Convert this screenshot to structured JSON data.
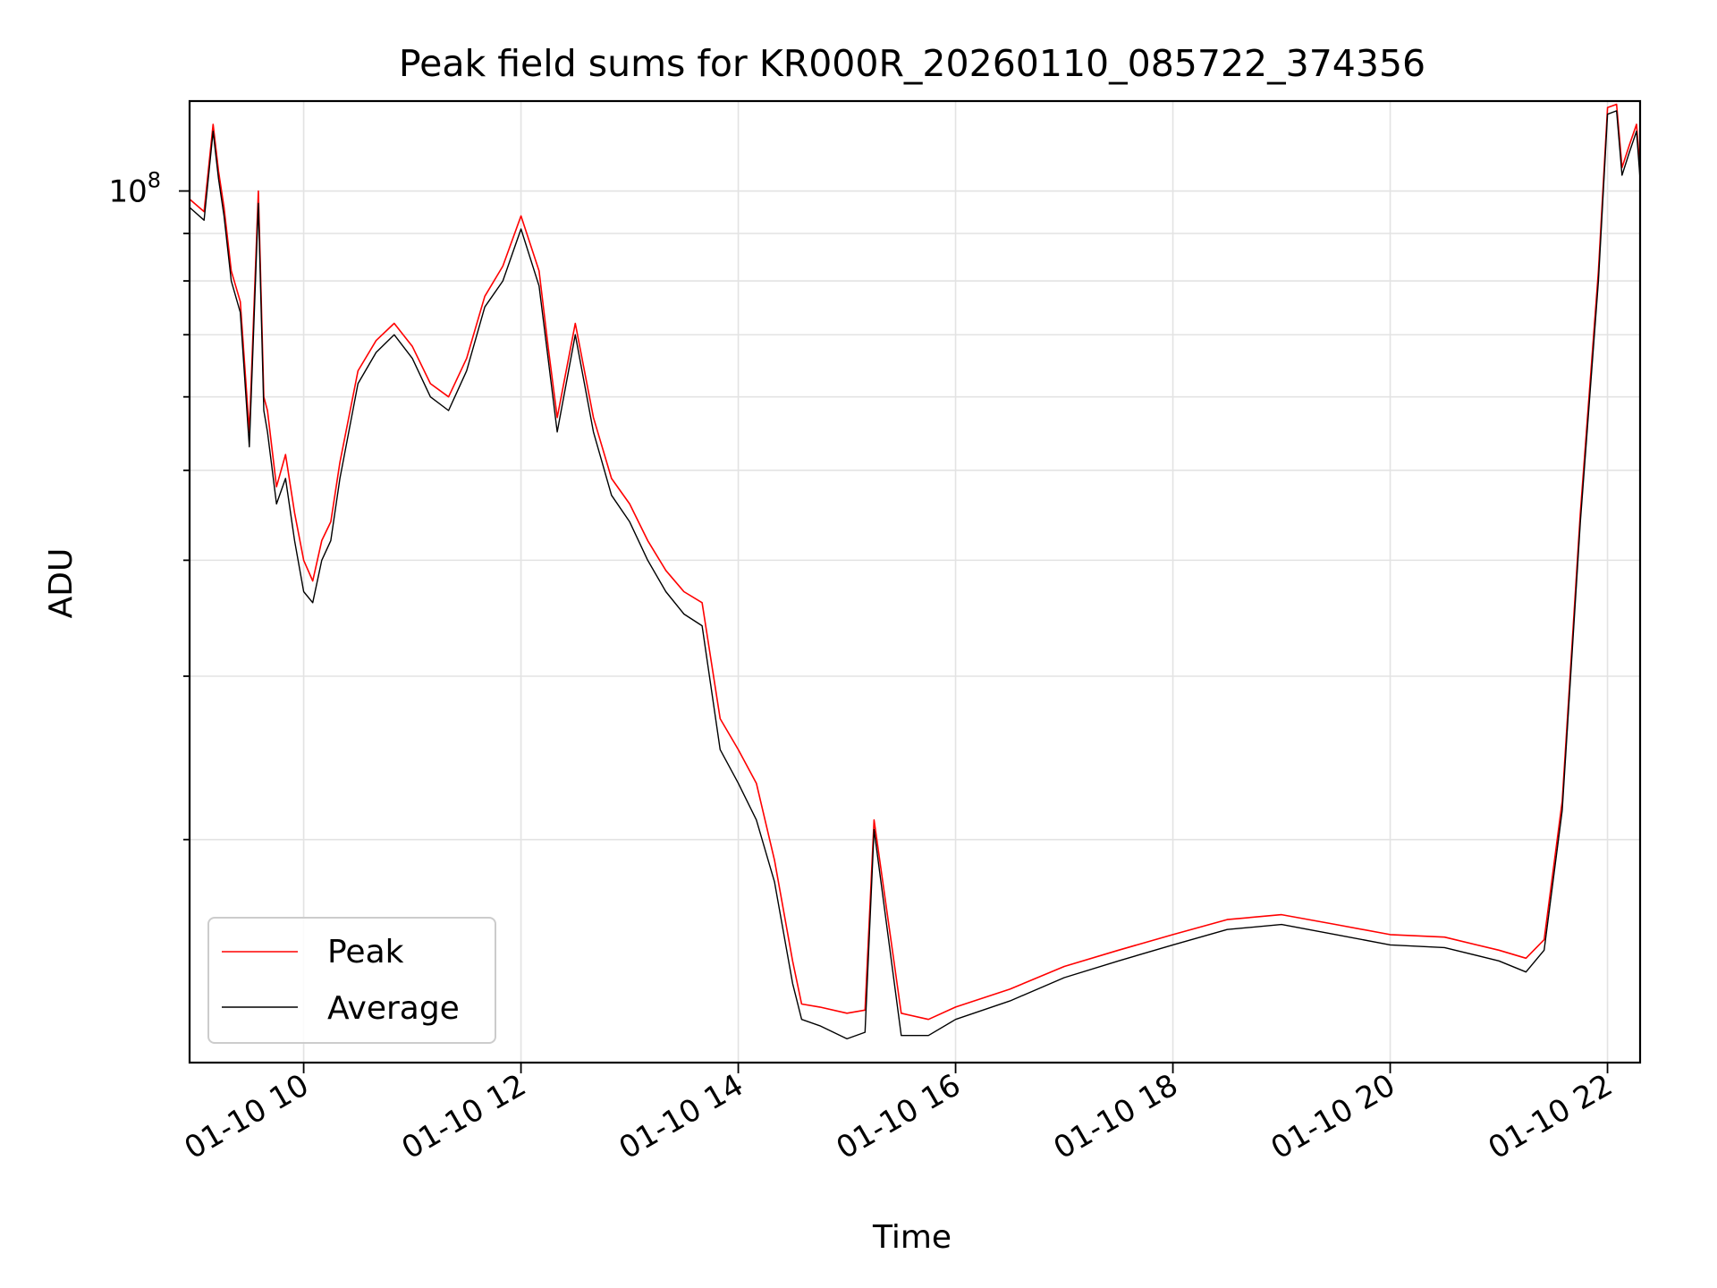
{
  "chart_data": {
    "type": "line",
    "title": "Peak field sums for KR000R_20260110_085722_374356",
    "xlabel": "Time",
    "ylabel": "ADU",
    "yscale": "log",
    "grid": "on",
    "legend_position": "lower-left",
    "xlim": [
      "2026-01-10 08:57",
      "2026-01-10 22:18"
    ],
    "ylim": [
      11500000,
      125000000
    ],
    "x_ticks": [
      {
        "value": "2026-01-10 10:00",
        "label": "01-10 10"
      },
      {
        "value": "2026-01-10 12:00",
        "label": "01-10 12"
      },
      {
        "value": "2026-01-10 14:00",
        "label": "01-10 14"
      },
      {
        "value": "2026-01-10 16:00",
        "label": "01-10 16"
      },
      {
        "value": "2026-01-10 18:00",
        "label": "01-10 18"
      },
      {
        "value": "2026-01-10 20:00",
        "label": "01-10 20"
      },
      {
        "value": "2026-01-10 22:00",
        "label": "01-10 22"
      }
    ],
    "y_major_tick": {
      "value": 100000000,
      "base": "10",
      "exponent": "8"
    },
    "y_minor_ticks": [
      20000000,
      30000000,
      40000000,
      50000000,
      60000000,
      70000000,
      80000000,
      90000000
    ],
    "x": [
      "2026-01-10 08:57",
      "2026-01-10 09:05",
      "2026-01-10 09:10",
      "2026-01-10 09:13",
      "2026-01-10 09:16",
      "2026-01-10 09:20",
      "2026-01-10 09:25",
      "2026-01-10 09:30",
      "2026-01-10 09:35",
      "2026-01-10 09:38",
      "2026-01-10 09:40",
      "2026-01-10 09:45",
      "2026-01-10 09:50",
      "2026-01-10 09:55",
      "2026-01-10 10:00",
      "2026-01-10 10:05",
      "2026-01-10 10:10",
      "2026-01-10 10:15",
      "2026-01-10 10:20",
      "2026-01-10 10:30",
      "2026-01-10 10:40",
      "2026-01-10 10:50",
      "2026-01-10 11:00",
      "2026-01-10 11:10",
      "2026-01-10 11:20",
      "2026-01-10 11:30",
      "2026-01-10 11:40",
      "2026-01-10 11:50",
      "2026-01-10 12:00",
      "2026-01-10 12:10",
      "2026-01-10 12:15",
      "2026-01-10 12:20",
      "2026-01-10 12:30",
      "2026-01-10 12:40",
      "2026-01-10 12:50",
      "2026-01-10 13:00",
      "2026-01-10 13:10",
      "2026-01-10 13:20",
      "2026-01-10 13:30",
      "2026-01-10 13:40",
      "2026-01-10 13:50",
      "2026-01-10 14:00",
      "2026-01-10 14:10",
      "2026-01-10 14:20",
      "2026-01-10 14:30",
      "2026-01-10 14:35",
      "2026-01-10 14:45",
      "2026-01-10 15:00",
      "2026-01-10 15:10",
      "2026-01-10 15:15",
      "2026-01-10 15:30",
      "2026-01-10 15:45",
      "2026-01-10 16:00",
      "2026-01-10 16:30",
      "2026-01-10 17:00",
      "2026-01-10 17:30",
      "2026-01-10 18:00",
      "2026-01-10 18:30",
      "2026-01-10 19:00",
      "2026-01-10 19:30",
      "2026-01-10 20:00",
      "2026-01-10 20:30",
      "2026-01-10 21:00",
      "2026-01-10 21:15",
      "2026-01-10 21:25",
      "2026-01-10 21:35",
      "2026-01-10 21:45",
      "2026-01-10 21:55",
      "2026-01-10 22:00",
      "2026-01-10 22:05",
      "2026-01-10 22:08",
      "2026-01-10 22:12",
      "2026-01-10 22:16",
      "2026-01-10 22:18"
    ],
    "series": [
      {
        "name": "Peak",
        "color": "#ff0000",
        "values": [
          98000000,
          95000000,
          118000000,
          105000000,
          96000000,
          82000000,
          76000000,
          55000000,
          100000000,
          60000000,
          58000000,
          48000000,
          52000000,
          45000000,
          40000000,
          38000000,
          42000000,
          44000000,
          51000000,
          64000000,
          69000000,
          72000000,
          68000000,
          62000000,
          60000000,
          66000000,
          77000000,
          83000000,
          94000000,
          82000000,
          68000000,
          57000000,
          72000000,
          57000000,
          49000000,
          46000000,
          42000000,
          39000000,
          37000000,
          36000000,
          27000000,
          25000000,
          23000000,
          19000000,
          14800000,
          13300000,
          13200000,
          13000000,
          13100000,
          21000000,
          13000000,
          12800000,
          13200000,
          13800000,
          14600000,
          15200000,
          15800000,
          16400000,
          16600000,
          16200000,
          15800000,
          15700000,
          15200000,
          14900000,
          15600000,
          22000000,
          45000000,
          82000000,
          123000000,
          124000000,
          106000000,
          112000000,
          118000000,
          105000000
        ]
      },
      {
        "name": "Average",
        "color": "#000000",
        "values": [
          96000000,
          93000000,
          116000000,
          103000000,
          94000000,
          80000000,
          74000000,
          53000000,
          97000000,
          58000000,
          55000000,
          46000000,
          49000000,
          42000000,
          37000000,
          36000000,
          40000000,
          42000000,
          49000000,
          62000000,
          67000000,
          70000000,
          66000000,
          60000000,
          58000000,
          64000000,
          75000000,
          80000000,
          91000000,
          79000000,
          66000000,
          55000000,
          70000000,
          55000000,
          47000000,
          44000000,
          40000000,
          37000000,
          35000000,
          34000000,
          25000000,
          23000000,
          21000000,
          18000000,
          14000000,
          12800000,
          12600000,
          12200000,
          12400000,
          20500000,
          12300000,
          12300000,
          12800000,
          13400000,
          14200000,
          14800000,
          15400000,
          16000000,
          16200000,
          15800000,
          15400000,
          15300000,
          14800000,
          14400000,
          15200000,
          21500000,
          44000000,
          80000000,
          121000000,
          122000000,
          104000000,
          110000000,
          116000000,
          103000000
        ]
      }
    ]
  }
}
